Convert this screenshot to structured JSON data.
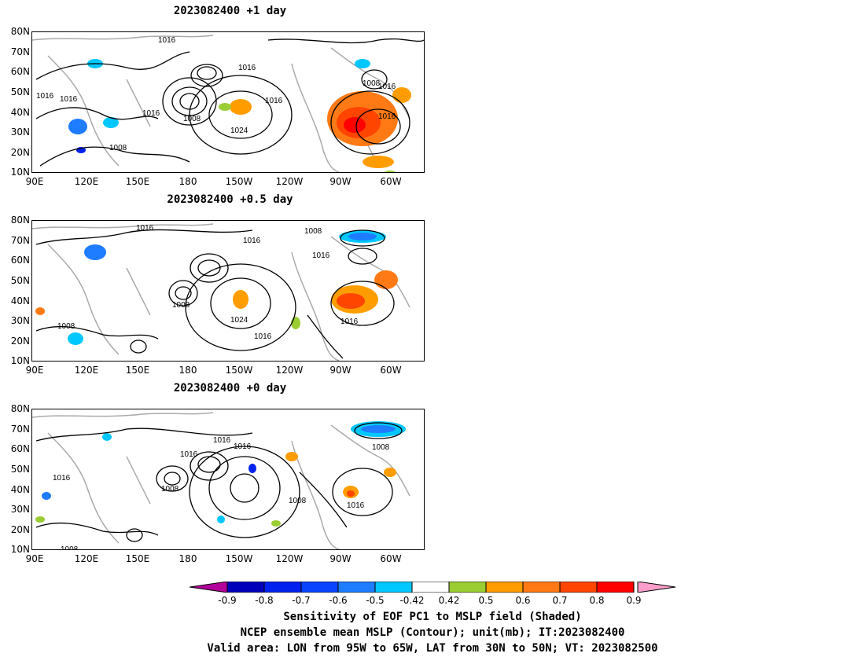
{
  "panels": [
    {
      "title": "2023082400  +1 day"
    },
    {
      "title": "2023082400  +0.5 day"
    },
    {
      "title": "2023082400  +0 day"
    }
  ],
  "lat_labels": [
    "80N",
    "70N",
    "60N",
    "50N",
    "40N",
    "30N",
    "20N",
    "10N"
  ],
  "lon_labels": [
    "90E",
    "120E",
    "150E",
    "180",
    "150W",
    "120W",
    "90W",
    "60W"
  ],
  "contour_labels": {
    "p1": [
      "1016",
      "1016",
      "1016",
      "1008",
      "1016",
      "1024",
      "1008",
      "1016",
      "1016",
      "1008",
      "1016",
      "1016"
    ],
    "p2": [
      "1016",
      "1016",
      "1008",
      "1016",
      "1008",
      "1024",
      "1016",
      "1008",
      "1016"
    ],
    "p3": [
      "1016",
      "1016",
      "1008",
      "1016",
      "1008",
      "1008",
      "1016",
      "1008",
      "1016"
    ]
  },
  "colorbar": {
    "ticks": [
      "-0.9",
      "-0.8",
      "-0.7",
      "-0.6",
      "-0.5",
      "-0.42",
      "0.42",
      "0.5",
      "0.6",
      "0.7",
      "0.8",
      "0.9"
    ],
    "colors": [
      "#0000bb",
      "#0022ee",
      "#0a44ff",
      "#1e7cff",
      "#00c8ff",
      "#ffffff",
      "#9acd32",
      "#ff9d00",
      "#ff7a14",
      "#ff4500",
      "#ff0000"
    ],
    "low_extend_color": "#b3009b",
    "high_extend_color": "#ff9ecb"
  },
  "caption": {
    "line1": "Sensitivity of EOF PC1 to MSLP field (Shaded)",
    "line2": "NCEP ensemble mean MSLP (Contour); unit(mb); IT:2023082400",
    "line3": "Valid area: LON from 95W to 65W, LAT from 30N to 50N; VT: 2023082500"
  }
}
